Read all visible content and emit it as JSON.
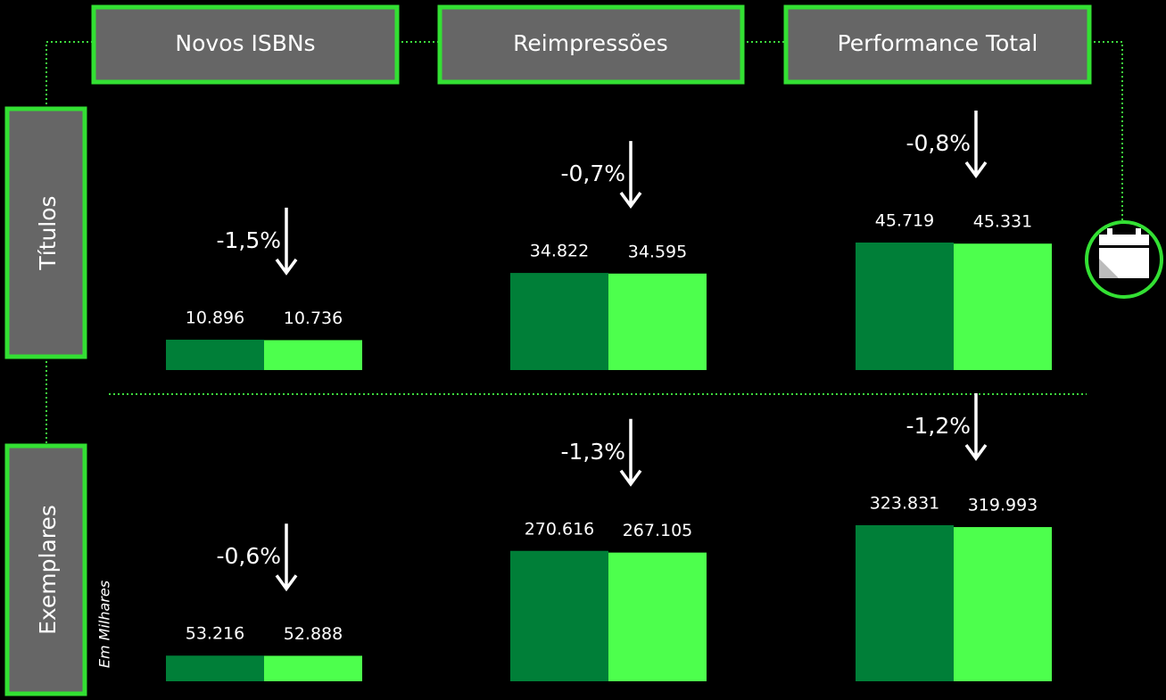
{
  "columns": [
    "Novos ISBNs",
    "Reimpressões",
    "Performance Total"
  ],
  "rows": [
    "Títulos",
    "Exemplares"
  ],
  "note": "Em Milhares",
  "chart_data": [
    {
      "type": "bar",
      "categories": [
        null,
        null
      ],
      "values": [
        10896,
        10736
      ],
      "value_labels": [
        "10.896",
        "10.736"
      ],
      "colors": [
        "#007f38",
        "#4dff4d"
      ],
      "annotation": "-1,5%"
    },
    {
      "type": "bar",
      "categories": [
        null,
        null
      ],
      "values": [
        34822,
        34595
      ],
      "value_labels": [
        "34.822",
        "34.595"
      ],
      "colors": [
        "#007f38",
        "#4dff4d"
      ],
      "annotation": "-0,7%"
    },
    {
      "type": "bar",
      "categories": [
        null,
        null
      ],
      "values": [
        45719,
        45331
      ],
      "value_labels": [
        "45.719",
        "45.331"
      ],
      "colors": [
        "#007f38",
        "#4dff4d"
      ],
      "annotation": "-0,8%"
    },
    {
      "type": "bar",
      "categories": [
        null,
        null
      ],
      "values": [
        53216,
        52888
      ],
      "value_labels": [
        "53.216",
        "52.888"
      ],
      "colors": [
        "#007f38",
        "#4dff4d"
      ],
      "annotation": "-0,6%"
    },
    {
      "type": "bar",
      "categories": [
        null,
        null
      ],
      "values": [
        270616,
        267105
      ],
      "value_labels": [
        "270.616",
        "267.105"
      ],
      "colors": [
        "#007f38",
        "#4dff4d"
      ],
      "annotation": "-1,3%"
    },
    {
      "type": "bar",
      "categories": [
        null,
        null
      ],
      "values": [
        323831,
        319993
      ],
      "value_labels": [
        "323.831",
        "319.993"
      ],
      "colors": [
        "#007f38",
        "#4dff4d"
      ],
      "annotation": "-1,2%"
    }
  ]
}
